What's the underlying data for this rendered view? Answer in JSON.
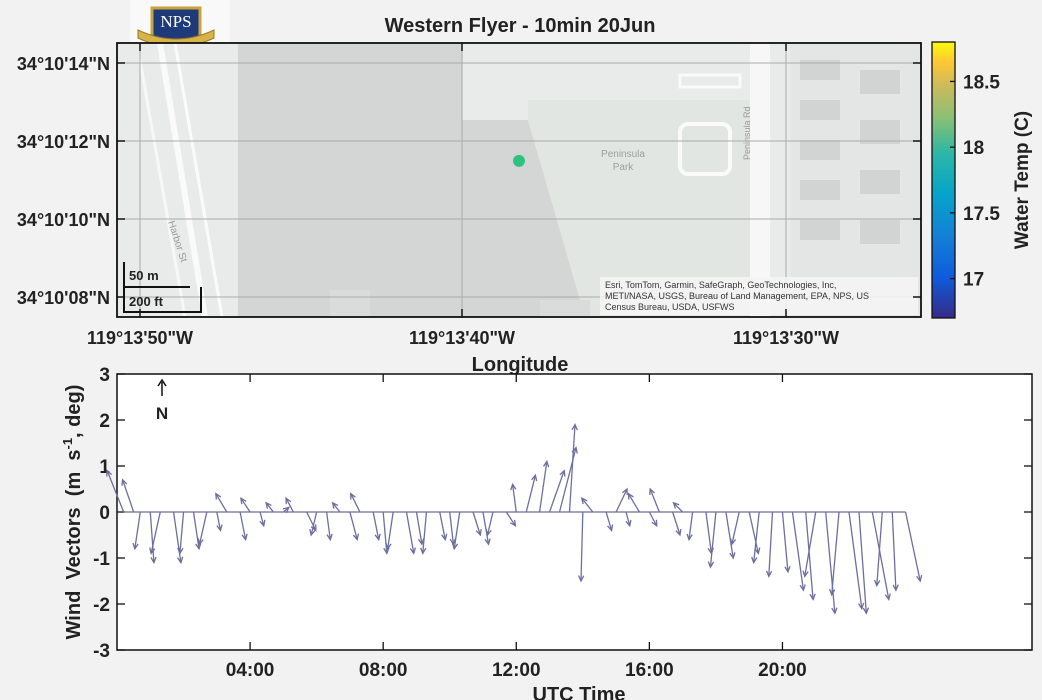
{
  "logo": {
    "text": "NPS"
  },
  "map_panel": {
    "title": "Western Flyer - 10min 20Jun",
    "xlabel": "Longitude",
    "lat_ticks": [
      "34°10'14\"N",
      "34°10'12\"N",
      "34°10'10\"N",
      "34°10'08\"N"
    ],
    "lon_ticks": [
      "119°13'50\"W",
      "119°13'40\"W",
      "119°13'30\"W"
    ],
    "map_labels": {
      "park": [
        "Peninsula",
        "Park"
      ],
      "road": "Peninsula Rd",
      "street": "Harbor St"
    },
    "scale_bar": {
      "metric": "50 m",
      "imperial": "200 ft"
    },
    "attribution": [
      "Esri, TomTom, Garmin, SafeGraph, GeoTechnologies, Inc,",
      "METI/NASA, USGS, Bureau of Land Management, EPA, NPS, US",
      "Census Bureau, USDA, USFWS"
    ],
    "colorbar": {
      "label": "Water Temp (C)",
      "ticks": [
        18.5,
        18,
        17.5,
        17
      ],
      "range": [
        16.7,
        18.8
      ]
    },
    "point": {
      "lon_fraction": 0.5,
      "lat_fraction": 0.57,
      "value": 17.6,
      "color": "#2ec27e"
    }
  },
  "chart_data": {
    "type": "quiver",
    "xlabel": "UTC Time",
    "ylabel": "Wind Vectors (m s-1, deg)",
    "ylim": [
      -3,
      3
    ],
    "yticks": [
      3,
      2,
      1,
      0,
      -1,
      -2,
      -3
    ],
    "xticks": [
      "04:00",
      "08:00",
      "12:00",
      "16:00",
      "20:00"
    ],
    "xtick_hours": [
      4,
      8,
      12,
      16,
      20
    ],
    "xlim_hours": [
      0,
      27.5
    ],
    "north_label": "N",
    "series_color": "#6e6e9e",
    "vectors": [
      [
        0.2,
        -0.9,
        0.9
      ],
      [
        0.5,
        -0.6,
        0.7
      ],
      [
        0.7,
        -0.3,
        -0.8
      ],
      [
        1.0,
        0.2,
        -1.1
      ],
      [
        1.3,
        -0.5,
        -0.9
      ],
      [
        1.7,
        0.4,
        -1.1
      ],
      [
        2.0,
        -0.2,
        -0.9
      ],
      [
        2.3,
        0.3,
        -0.8
      ],
      [
        2.7,
        -0.4,
        -0.7
      ],
      [
        3.0,
        0.2,
        -0.4
      ],
      [
        3.3,
        -0.6,
        0.4
      ],
      [
        3.7,
        0.3,
        -0.6
      ],
      [
        4.0,
        -0.5,
        0.3
      ],
      [
        4.3,
        0.2,
        -0.3
      ],
      [
        4.7,
        -0.4,
        0.2
      ],
      [
        5.0,
        0.3,
        0.1
      ],
      [
        5.3,
        -0.4,
        0.3
      ],
      [
        5.7,
        0.5,
        -0.4
      ],
      [
        6.0,
        -0.3,
        -0.5
      ],
      [
        6.3,
        0.2,
        -0.6
      ],
      [
        6.7,
        -0.4,
        0.2
      ],
      [
        7.0,
        0.4,
        -0.6
      ],
      [
        7.3,
        -0.5,
        0.4
      ],
      [
        7.7,
        0.3,
        -0.6
      ],
      [
        8.0,
        0.2,
        -0.9
      ],
      [
        8.3,
        -0.3,
        -0.8
      ],
      [
        8.7,
        0.4,
        -0.9
      ],
      [
        9.0,
        0.3,
        -0.7
      ],
      [
        9.3,
        -0.2,
        -0.9
      ],
      [
        9.7,
        0.3,
        -0.6
      ],
      [
        10.0,
        0.2,
        -0.7
      ],
      [
        10.3,
        -0.3,
        -0.8
      ],
      [
        10.7,
        0.4,
        -0.5
      ],
      [
        11.0,
        0.3,
        -0.7
      ],
      [
        11.3,
        -0.3,
        -0.5
      ],
      [
        11.7,
        0.5,
        -0.3
      ],
      [
        12.0,
        -0.2,
        0.6
      ],
      [
        12.3,
        0.5,
        0.8
      ],
      [
        12.7,
        0.4,
        1.1
      ],
      [
        13.0,
        0.8,
        0.9
      ],
      [
        13.3,
        0.9,
        1.4
      ],
      [
        13.6,
        0.3,
        1.9
      ],
      [
        14.0,
        -0.1,
        -1.5
      ],
      [
        14.3,
        -0.6,
        0.3
      ],
      [
        14.7,
        0.3,
        -0.4
      ],
      [
        15.0,
        0.6,
        0.5
      ],
      [
        15.3,
        0.2,
        -0.3
      ],
      [
        15.7,
        -0.6,
        0.4
      ],
      [
        16.0,
        0.4,
        -0.3
      ],
      [
        16.3,
        -0.5,
        0.5
      ],
      [
        16.7,
        0.4,
        -0.5
      ],
      [
        17.0,
        -0.5,
        0.2
      ],
      [
        17.3,
        -0.2,
        -0.6
      ],
      [
        17.7,
        0.3,
        -0.9
      ],
      [
        18.0,
        -0.3,
        -1.2
      ],
      [
        18.3,
        0.4,
        -1.0
      ],
      [
        18.7,
        -0.4,
        -0.7
      ],
      [
        19.0,
        0.5,
        -0.9
      ],
      [
        19.3,
        -0.3,
        -1.1
      ],
      [
        19.7,
        -0.2,
        -1.4
      ],
      [
        20.0,
        0.3,
        -1.3
      ],
      [
        20.3,
        0.6,
        -1.7
      ],
      [
        20.7,
        0.4,
        -1.9
      ],
      [
        21.0,
        -0.6,
        -1.4
      ],
      [
        21.3,
        0.5,
        -2.2
      ],
      [
        21.7,
        -0.4,
        -1.8
      ],
      [
        22.0,
        0.7,
        -2.1
      ],
      [
        22.3,
        0.4,
        -2.2
      ],
      [
        22.7,
        0.9,
        -1.9
      ],
      [
        23.0,
        -0.3,
        -1.6
      ],
      [
        23.3,
        0.2,
        -1.7
      ],
      [
        23.7,
        0.8,
        -1.5
      ]
    ]
  }
}
